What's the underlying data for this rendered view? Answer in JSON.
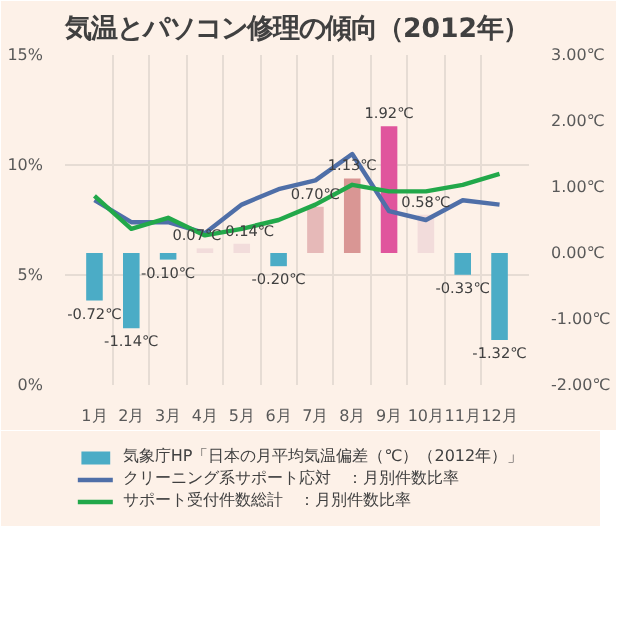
{
  "chart_data": {
    "type": "line",
    "title": "気温とパソコン修理の傾向（2012年）",
    "categories": [
      "1月",
      "2月",
      "3月",
      "4月",
      "5月",
      "6月",
      "7月",
      "8月",
      "9月",
      "10月",
      "11月",
      "12月"
    ],
    "ylim": [
      0,
      15
    ],
    "yticks": [
      {
        "value": 0,
        "label": "0%"
      },
      {
        "value": 5,
        "label": "5%"
      },
      {
        "value": 10,
        "label": "10%"
      },
      {
        "value": 15,
        "label": "15%"
      }
    ],
    "y2lim": [
      -2,
      3
    ],
    "y2ticks": [
      {
        "value": -2,
        "label": "-2.00℃"
      },
      {
        "value": -1,
        "label": "-1.00℃"
      },
      {
        "value": 0,
        "label": "0.00℃"
      },
      {
        "value": 1,
        "label": "1.00℃"
      },
      {
        "value": 2,
        "label": "2.00℃"
      },
      {
        "value": 3,
        "label": "3.00℃"
      }
    ],
    "series": [
      {
        "type": "bar",
        "axis": "y2",
        "name": "気象庁HP「日本の月平均気温偏差（℃）（2012年）」",
        "color": "#4bacc6",
        "colors": [
          "#4bacc6",
          "#4bacc6",
          "#4bacc6",
          "#f2dcdb",
          "#f2dcdb",
          "#4bacc6",
          "#e6b9b8",
          "#d99694",
          "#e0559d",
          "#f2dcdb",
          "#4bacc6",
          "#4bacc6"
        ],
        "values": [
          -0.72,
          -1.14,
          -0.1,
          0.07,
          0.14,
          -0.2,
          0.7,
          1.13,
          1.92,
          0.58,
          -0.33,
          -1.32
        ],
        "value_labels": [
          "-0.72℃",
          "-1.14℃",
          "-0.10℃",
          "0.07℃",
          "0.14℃",
          "-0.20℃",
          "0.70℃",
          "1.13℃",
          "1.92℃",
          "0.58℃",
          "-0.33℃",
          "-1.32℃"
        ]
      },
      {
        "name": "クリーニング系サポート応対　：月別件数比率",
        "color": "#4f6fa8",
        "values": [
          8.4,
          7.4,
          7.4,
          6.9,
          8.2,
          8.9,
          9.3,
          10.5,
          7.9,
          7.5,
          8.4,
          8.2
        ]
      },
      {
        "name": "サポート受付件数総計　：月別件数比率",
        "color": "#22a84a",
        "values": [
          8.6,
          7.1,
          7.6,
          6.8,
          7.1,
          7.5,
          8.2,
          9.1,
          8.8,
          8.8,
          9.1,
          9.6
        ]
      }
    ],
    "grid": true,
    "legend": "bottom"
  }
}
